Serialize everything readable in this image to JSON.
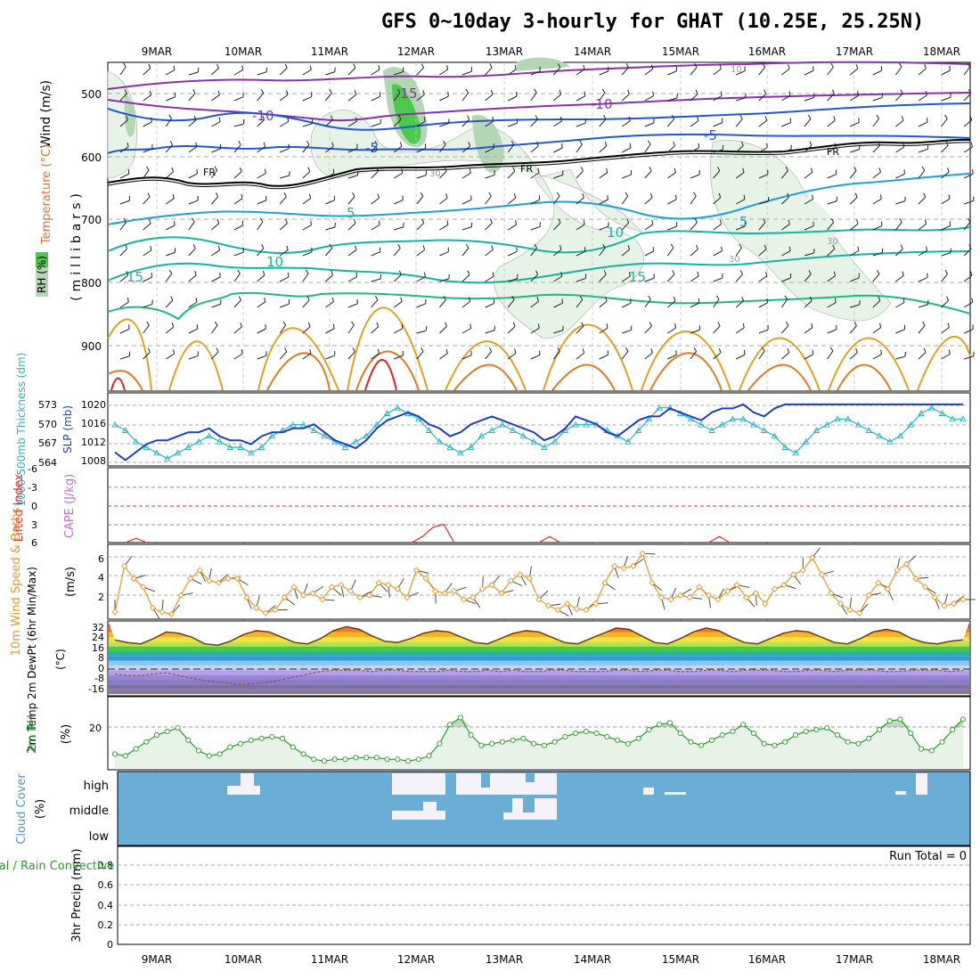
{
  "title": "GFS 0~10day 3-hourly for GHAT (10.25E, 25.25N)",
  "dates": [
    "9MAR",
    "10MAR",
    "11MAR",
    "12MAR",
    "13MAR",
    "14MAR",
    "15MAR",
    "16MAR",
    "17MAR",
    "18MAR"
  ],
  "colors": {
    "temp_purple": "#8a2fb0",
    "temp_blue": "#2255dd",
    "freeze": "#000000",
    "temp_cyan": "#1ea0d8",
    "temp_teal": "#14b4a0",
    "temp_green": "#20b880",
    "temp_orange": "#e0a020",
    "temp_darkorange": "#e07a20",
    "temp_red": "#e02020",
    "rh_light": "#e6f3e6",
    "rh_mid": "#b4d6b4",
    "rh_dark": "#4cc84c",
    "slp": "#1a3ec8",
    "thickness": "#28b4c8",
    "lifted": "#e03030",
    "wind10": "#e8962a",
    "barb": "#5a4a3a",
    "rh2m": "#2a9a2a",
    "rh2m_fill": "#e8f3e8",
    "cloud": "#6aaed6",
    "cloud_clear": "#f4f2f8"
  },
  "panels": {
    "profile": {
      "ylabel_wind": "Wind (m/s)",
      "ylabel_temp": "Temperature (°C)",
      "ylabel_rh": "RH (%)",
      "ylabel_pressure": "(millibars)",
      "pressure_ticks": [
        "500",
        "600",
        "700",
        "800",
        "900"
      ],
      "contour_labels": [
        "-15",
        "-10",
        "-10",
        "-5",
        "-5",
        "FR",
        "FR",
        "FR",
        "5",
        "5",
        "10",
        "10",
        "15",
        "15",
        "30",
        "30",
        "30",
        "10"
      ]
    },
    "slp": {
      "ylabel_left": "1000-500mb Thickness (dm)",
      "ylabel_right": "SLP (mb)",
      "thickness_ticks": [
        "573",
        "570",
        "567",
        "564"
      ],
      "slp_ticks": [
        "1020",
        "1016",
        "1012",
        "1008"
      ]
    },
    "stability": {
      "ylabel_li": "Lifted Index",
      "ylabel_cape": "CAPE (J/kg)",
      "ticks": [
        "-6",
        "-3",
        "0",
        "3",
        "6"
      ]
    },
    "wind10": {
      "ylabel": "10m Wind Speed & Barbs",
      "units": "(m/s)",
      "ticks": [
        "6",
        "4",
        "2"
      ]
    },
    "temp2m": {
      "ylabel": "2m Temp 2m DewPt (6hr Min/Max)",
      "units": "(°C)",
      "ticks": [
        "32",
        "24",
        "16",
        "8",
        "0",
        "-8",
        "-16"
      ]
    },
    "rh2m": {
      "ylabel": "2m RH",
      "units": "(%)",
      "ticks": [
        "20"
      ]
    },
    "cloud": {
      "ylabel": "Cloud Cover",
      "units": "(%)",
      "levels": [
        "high",
        "middle",
        "low"
      ]
    },
    "precip": {
      "ylabel": "Total / Rain  Convective",
      "axis_label": "3hr Precip (mm)",
      "ticks": [
        "0.8",
        "0.6",
        "0.4",
        "0.2",
        "0"
      ],
      "run_total": "Run Total = 0"
    }
  },
  "chart_data": [
    {
      "type": "line",
      "title": "SLP (mb)",
      "ylim": [
        1006,
        1023
      ],
      "series": [
        {
          "name": "SLP",
          "values": [
            1009,
            1007,
            1009,
            1011,
            1012,
            1012,
            1013,
            1014,
            1014,
            1015,
            1013,
            1012,
            1012,
            1011,
            1013,
            1014,
            1014,
            1015,
            1015,
            1016,
            1014,
            1012,
            1011,
            1010,
            1012,
            1015,
            1017,
            1018,
            1019,
            1018,
            1016,
            1015,
            1013,
            1014,
            1016,
            1017,
            1018,
            1017,
            1016,
            1015,
            1014,
            1012,
            1013,
            1015,
            1018,
            1017,
            1016,
            1014,
            1013,
            1015,
            1017,
            1018,
            1018,
            1020,
            1019,
            1018,
            1017,
            1019,
            1020,
            1020,
            1021,
            1019,
            1018,
            1020,
            1021,
            1021,
            1021,
            1021,
            1021,
            1021,
            1021,
            1021,
            1021,
            1021,
            1021,
            1021,
            1021,
            1021,
            1021,
            1021,
            1021,
            1021
          ]
        }
      ]
    },
    {
      "type": "line",
      "title": "1000-500mb Thickness (dm)",
      "ylim": [
        563,
        575
      ],
      "series": [
        {
          "name": "Thickness",
          "values": [
            570,
            569,
            567,
            566,
            565,
            564,
            565,
            566,
            567,
            568,
            567,
            566,
            566,
            565,
            566,
            568,
            569,
            570,
            570,
            569,
            568,
            567,
            566,
            567,
            568,
            570,
            572,
            573,
            572,
            571,
            569,
            567,
            566,
            565,
            566,
            568,
            569,
            570,
            569,
            568,
            567,
            566,
            567,
            569,
            570,
            570,
            570,
            569,
            568,
            567,
            569,
            571,
            573,
            573,
            572,
            571,
            570,
            569,
            570,
            571,
            571,
            570,
            569,
            568,
            566,
            565,
            567,
            569,
            570,
            571,
            571,
            570,
            569,
            568,
            567,
            568,
            570,
            572,
            573,
            572,
            571,
            571
          ]
        }
      ]
    },
    {
      "type": "line",
      "title": "Lifted Index",
      "ylim": [
        -6,
        6
      ],
      "series": [
        {
          "name": "Lifted Index",
          "points": [
            [
              1,
              6
            ],
            [
              2,
              5.3
            ],
            [
              3,
              6
            ],
            [
              28,
              6
            ],
            [
              29,
              5
            ],
            [
              30,
              3.5
            ],
            [
              31,
              3
            ],
            [
              32,
              6
            ],
            [
              40,
              6
            ],
            [
              41,
              5
            ],
            [
              42,
              6
            ],
            [
              56,
              6
            ],
            [
              57,
              5
            ],
            [
              58,
              6
            ]
          ]
        }
      ]
    },
    {
      "type": "line",
      "title": "10m Wind Speed",
      "ylim": [
        0,
        7
      ],
      "series": [
        {
          "name": "10m Wind Speed",
          "values": [
            0.6,
            5.0,
            3.8,
            3.0,
            1.0,
            0.6,
            0.4,
            2.2,
            3.8,
            4.6,
            3.6,
            3.4,
            3.8,
            3.8,
            2.0,
            1.0,
            0.5,
            0.8,
            2.0,
            3.0,
            2.2,
            2.4,
            1.8,
            3.0,
            3.2,
            2.6,
            2.0,
            2.2,
            3.4,
            3.2,
            2.8,
            2.0,
            4.6,
            3.8,
            2.6,
            2.4,
            2.6,
            1.8,
            2.0,
            2.8,
            3.2,
            2.4,
            3.6,
            4.2,
            3.8,
            1.8,
            1.2,
            0.8,
            1.4,
            0.9,
            0.8,
            1.4,
            3.4,
            5.0,
            4.8,
            5.0,
            6.2,
            3.4,
            2.0,
            1.8,
            2.2,
            2.0,
            3.0,
            2.2,
            1.8,
            2.6,
            3.2,
            2.0,
            2.4,
            1.4,
            2.8,
            3.2,
            4.2,
            4.6,
            5.8,
            4.2,
            2.4,
            1.4,
            0.8,
            0.5,
            2.2,
            3.4,
            2.8,
            4.6,
            5.2,
            3.8,
            3.0,
            2.0,
            1.2,
            1.4,
            1.8
          ]
        }
      ]
    },
    {
      "type": "area",
      "title": "2m Temp / 2m DewPt",
      "ylim": [
        -20,
        34
      ],
      "series": [
        {
          "name": "2m Temp",
          "values": [
            21,
            19,
            18,
            22,
            27,
            26,
            23,
            18,
            17,
            20,
            25,
            28,
            27,
            23,
            19,
            18,
            22,
            28,
            31,
            29,
            24,
            20,
            19,
            22,
            26,
            28,
            27,
            23,
            19,
            18,
            22,
            26,
            28,
            27,
            23,
            19,
            18,
            22,
            26,
            30,
            29,
            24,
            19,
            18,
            22,
            27,
            30,
            28,
            23,
            19,
            18,
            22,
            26,
            28,
            27,
            23,
            19,
            18,
            22,
            27,
            29,
            27,
            22,
            19,
            18,
            20,
            21
          ]
        },
        {
          "name": "2m DewPt",
          "values": [
            -5,
            -6,
            -6,
            -5,
            -4,
            -6,
            -8,
            -10,
            -11,
            -12,
            -13,
            -12,
            -11,
            -9,
            -7,
            -5,
            -3,
            -2,
            -2,
            -2,
            -3,
            -2,
            -2,
            -3,
            -3,
            -3,
            -2,
            -3,
            -3,
            -2,
            -3,
            -2,
            -3,
            -3,
            -2,
            -2,
            -3,
            -3,
            -3,
            -2,
            -2,
            -3,
            -2,
            -2,
            -3,
            -3,
            -2,
            -2,
            -3,
            -2,
            -2,
            -2,
            -3,
            -3,
            -2,
            -2,
            -3,
            -2,
            -2,
            -2,
            -3,
            -3,
            -2,
            -2,
            -2,
            -3,
            -2
          ]
        }
      ]
    },
    {
      "type": "area",
      "title": "2m RH",
      "ylim": [
        0,
        40
      ],
      "series": [
        {
          "name": "2m RH",
          "values": [
            8,
            7,
            11,
            15,
            19,
            21,
            23,
            16,
            10,
            7,
            8,
            12,
            14,
            16,
            17,
            18,
            17,
            12,
            8,
            5,
            4,
            5,
            5,
            6,
            6,
            6,
            5,
            5,
            4,
            5,
            7,
            14,
            25,
            29,
            19,
            13,
            14,
            15,
            16,
            17,
            14,
            13,
            15,
            18,
            20,
            21,
            20,
            18,
            16,
            14,
            17,
            22,
            25,
            26,
            20,
            15,
            13,
            16,
            19,
            21,
            25,
            20,
            14,
            13,
            15,
            19,
            21,
            22,
            23,
            19,
            15,
            14,
            17,
            22,
            27,
            28,
            20,
            11,
            10,
            15,
            22,
            28
          ]
        }
      ]
    }
  ]
}
